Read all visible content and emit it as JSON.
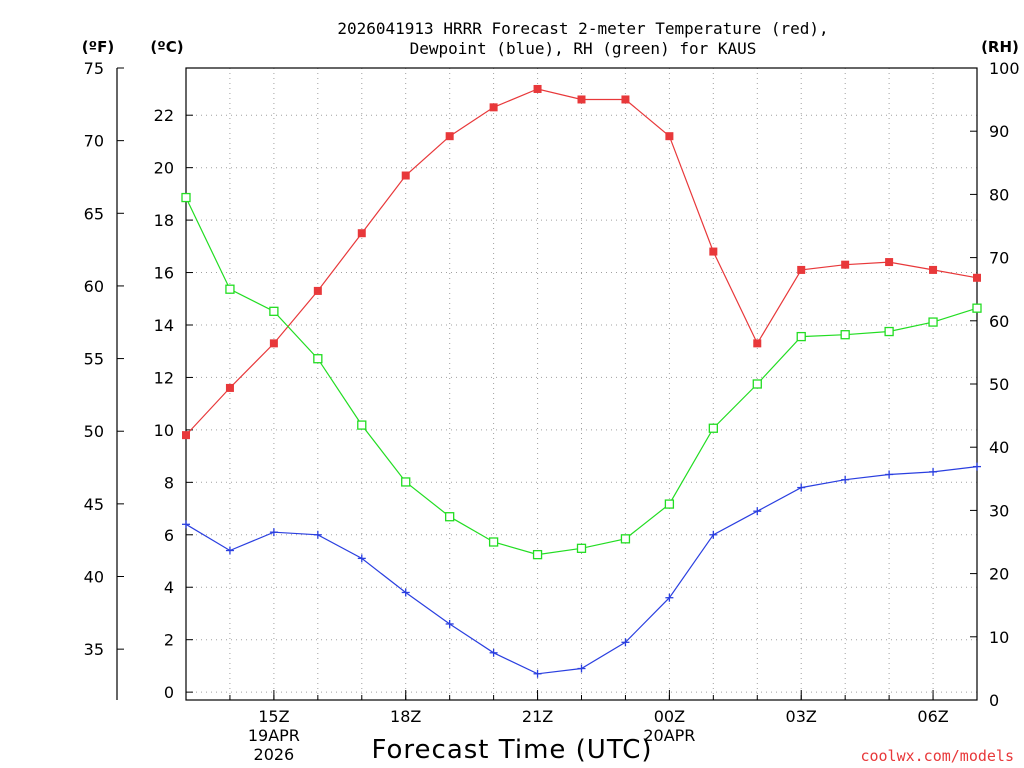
{
  "title_line1": "2026041913 HRRR Forecast 2-meter Temperature (red),",
  "title_line2": "Dewpoint (blue), RH (green) for KAUS",
  "units": {
    "f": "(ºF)",
    "c": "(ºC)",
    "rh": "(RH)"
  },
  "credit": "coolwx.com/models",
  "colors": {
    "temp": "#e8383a",
    "dewpoint": "#2a3fe0",
    "rh": "#22dd22",
    "credit": "#e8383a"
  },
  "chart_data": {
    "type": "line",
    "title": "2026041913 HRRR Forecast 2-meter Temperature (red), Dewpoint (blue), RH (green) for KAUS",
    "xlabel": "Forecast Time (UTC)",
    "x_hours": [
      0,
      1,
      2,
      3,
      4,
      5,
      6,
      7,
      8,
      9,
      10,
      11,
      12,
      13,
      14,
      15,
      16,
      17,
      18
    ],
    "xlim": [
      0,
      18
    ],
    "x_ticks": [
      {
        "hour": 2,
        "label": "15Z",
        "date": "19APR",
        "year": "2026"
      },
      {
        "hour": 5,
        "label": "18Z",
        "date": "",
        "year": ""
      },
      {
        "hour": 8,
        "label": "21Z",
        "date": "",
        "year": ""
      },
      {
        "hour": 11,
        "label": "00Z",
        "date": "20APR",
        "year": ""
      },
      {
        "hour": 14,
        "label": "03Z",
        "date": "",
        "year": ""
      },
      {
        "hour": 17,
        "label": "06Z",
        "date": "",
        "year": ""
      }
    ],
    "y_celsius": {
      "lim": [
        -0.3,
        23.8
      ],
      "ticks": [
        0,
        2,
        4,
        6,
        8,
        10,
        12,
        14,
        16,
        18,
        20,
        22
      ],
      "label": "(ºC)"
    },
    "y_fahrenheit": {
      "lim": [
        31.5,
        75
      ],
      "ticks": [
        35,
        40,
        45,
        50,
        55,
        60,
        65,
        70,
        75
      ],
      "label": "(ºF)"
    },
    "y_rh": {
      "lim": [
        0,
        100
      ],
      "ticks": [
        0,
        10,
        20,
        30,
        40,
        50,
        60,
        70,
        80,
        90,
        100
      ],
      "label": "(RH)"
    },
    "series": [
      {
        "name": "Temperature (°C)",
        "axis": "celsius",
        "color": "red",
        "marker": "filled-square",
        "values": [
          9.8,
          11.6,
          13.3,
          15.3,
          17.5,
          19.7,
          21.2,
          22.3,
          23.0,
          22.6,
          22.6,
          21.2,
          16.8,
          13.3,
          16.1,
          16.3,
          16.4,
          16.1,
          15.8
        ]
      },
      {
        "name": "Dewpoint (°C)",
        "axis": "celsius",
        "color": "blue",
        "marker": "plus",
        "values": [
          6.4,
          5.4,
          6.1,
          6.0,
          5.1,
          3.8,
          2.6,
          1.5,
          0.7,
          0.9,
          1.9,
          3.6,
          6.0,
          6.9,
          7.8,
          8.1,
          8.3,
          8.4,
          8.6
        ]
      },
      {
        "name": "Relative Humidity (%)",
        "axis": "rh",
        "color": "green",
        "marker": "open-square",
        "values": [
          79.5,
          65.0,
          61.5,
          54.0,
          43.5,
          34.5,
          29.0,
          25.0,
          23.0,
          24.0,
          25.5,
          31.0,
          43.0,
          50.0,
          57.5,
          57.8,
          58.3,
          59.8,
          62.0
        ]
      }
    ]
  }
}
